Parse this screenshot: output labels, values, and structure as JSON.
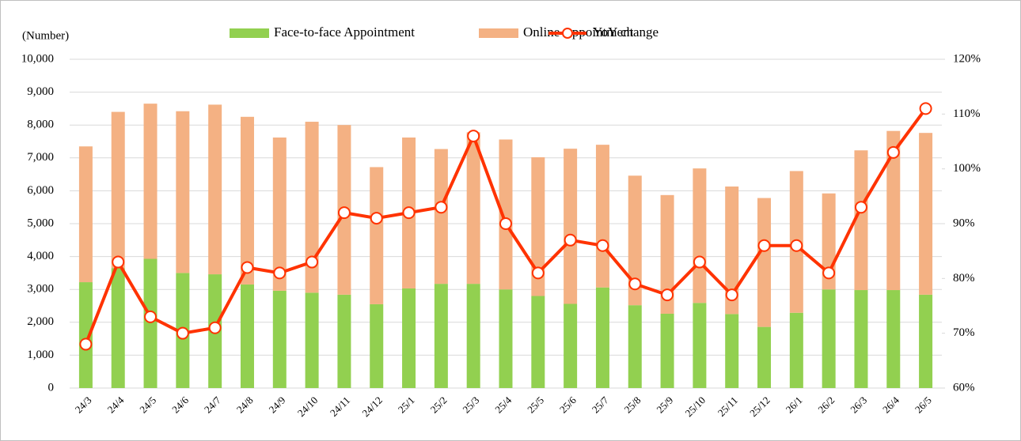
{
  "chart_data": {
    "type": "bar",
    "y_axis_label": "(Number)",
    "categories": [
      "24/3",
      "24/4",
      "24/5",
      "24/6",
      "24/7",
      "24/8",
      "24/9",
      "24/10",
      "24/11",
      "24/12",
      "25/1",
      "25/2",
      "25/3",
      "25/4",
      "25/5",
      "25/6",
      "25/7",
      "25/8",
      "25/9",
      "25/10",
      "25/11",
      "25/12",
      "26/1",
      "26/2",
      "26/3",
      "26/4",
      "26/5"
    ],
    "series": [
      {
        "name": "Face-to-face Appointment",
        "color": "#92d050",
        "type": "bar",
        "values": [
          3220,
          3650,
          3930,
          3500,
          3460,
          3150,
          2960,
          2900,
          2840,
          2550,
          3030,
          3170,
          3170,
          3000,
          2800,
          2560,
          3060,
          2520,
          2260,
          2590,
          2250,
          1860,
          2290,
          3000,
          2980,
          2980,
          2840
        ]
      },
      {
        "name": "Online Appointment",
        "color": "#f4b183",
        "type": "bar",
        "values": [
          4130,
          4750,
          4720,
          4920,
          5160,
          5100,
          4660,
          5200,
          5160,
          4170,
          4590,
          4100,
          4610,
          4560,
          4220,
          4720,
          4340,
          3940,
          3610,
          4090,
          3880,
          3920,
          4310,
          2920,
          4250,
          4840,
          4920
        ]
      },
      {
        "name": "YoY change",
        "color": "#ff3300",
        "type": "line",
        "axis": "y2",
        "values": [
          68,
          83,
          73,
          70,
          71,
          82,
          81,
          83,
          92,
          91,
          92,
          93,
          106,
          90,
          81,
          87,
          86,
          79,
          77,
          83,
          77,
          86,
          86,
          81,
          93,
          103,
          111
        ]
      }
    ],
    "stacked": true,
    "ylim": [
      0,
      10000
    ],
    "yticks": [
      0,
      {
        "value": 1000,
        "label": "1,000"
      },
      {
        "value": 2000,
        "label": "2,000"
      },
      {
        "value": 3000,
        "label": "3,000"
      },
      {
        "value": 4000,
        "label": "4,000"
      },
      {
        "value": 5000,
        "label": "5,000"
      },
      {
        "value": 6000,
        "label": "6,000"
      },
      {
        "value": 7000,
        "label": "7,000"
      },
      {
        "value": 8000,
        "label": "8,000"
      },
      {
        "value": 9000,
        "label": "9,000"
      },
      {
        "value": 10000,
        "label": "10,000"
      }
    ],
    "y2lim": [
      60,
      120
    ],
    "y2ticks": [
      {
        "value": 60,
        "label": "60%"
      },
      {
        "value": 70,
        "label": "70%"
      },
      {
        "value": 80,
        "label": "80%"
      },
      {
        "value": 90,
        "label": "90%"
      },
      {
        "value": 100,
        "label": "100%"
      },
      {
        "value": 110,
        "label": "110%"
      },
      {
        "value": 120,
        "label": "120%"
      }
    ],
    "grid": true
  }
}
